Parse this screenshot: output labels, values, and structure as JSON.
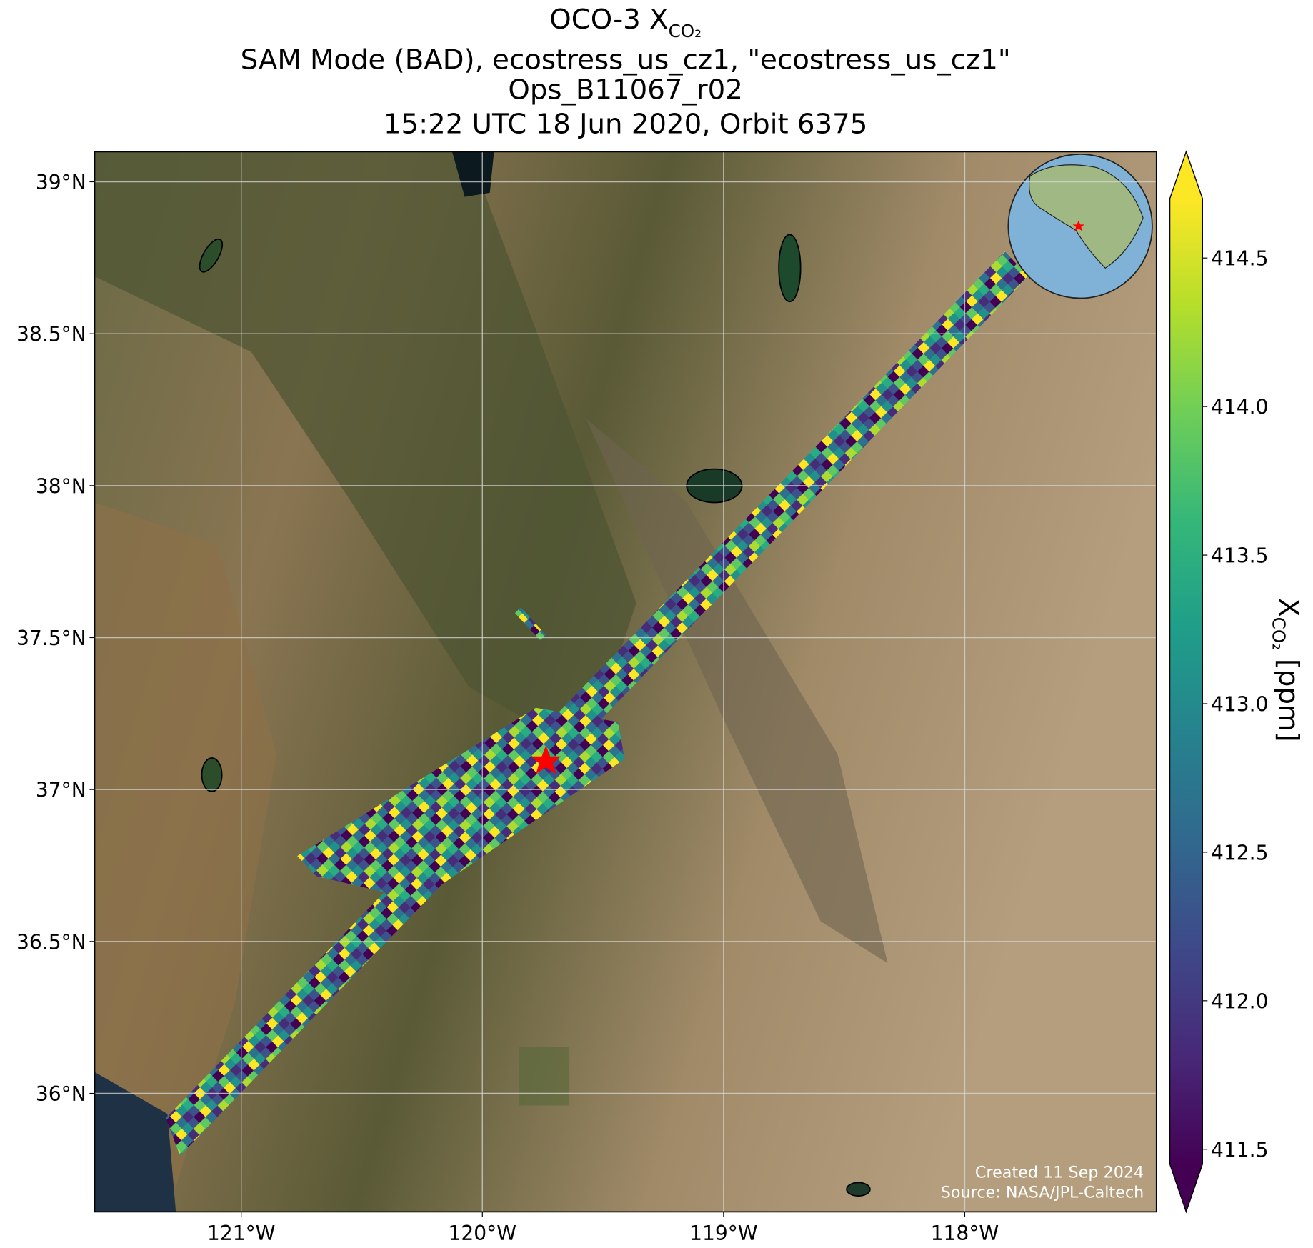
{
  "map": {
    "title": {
      "main": "OCO-3 X",
      "main_subscript": "CO₂",
      "lines": [
        "SAM Mode (BAD), ecostress_us_cz1, \"ecostress_us_cz1\"",
        "Ops_B11067_r02",
        "15:22 UTC 18 Jun 2020, Orbit 6375"
      ]
    },
    "xlim": [
      -121.608,
      -117.205
    ],
    "ylim": [
      35.61,
      39.099
    ],
    "xticks": [
      {
        "value": -121,
        "label": "121°W"
      },
      {
        "value": -120,
        "label": "120°W"
      },
      {
        "value": -119,
        "label": "119°W"
      },
      {
        "value": -118,
        "label": "118°W"
      }
    ],
    "yticks": [
      {
        "value": 36,
        "label": "36°N"
      },
      {
        "value": 36.5,
        "label": "36.5°N"
      },
      {
        "value": 37,
        "label": "37°N"
      },
      {
        "value": 37.5,
        "label": "37.5°N"
      },
      {
        "value": 38,
        "label": "38°N"
      },
      {
        "value": 38.5,
        "label": "38.5°N"
      },
      {
        "value": 39,
        "label": "39°N"
      }
    ],
    "grid": true,
    "colorbar": {
      "colormap": "viridis",
      "extend": "both",
      "lim": [
        411.45,
        414.7
      ],
      "ticks": [
        {
          "value": 411.5,
          "label": "411.5"
        },
        {
          "value": 412,
          "label": "412.0"
        },
        {
          "value": 412.5,
          "label": "412.5"
        },
        {
          "value": 413,
          "label": "413.0"
        },
        {
          "value": 413.5,
          "label": "413.5"
        },
        {
          "value": 414,
          "label": "414.0"
        },
        {
          "value": 414.5,
          "label": "414.5"
        }
      ],
      "label": {
        "base": "X",
        "subscript": "CO₂",
        "unit": "[ppm]"
      }
    },
    "annotations": [
      "Created 11 Sep 2024",
      "Source: NASA/JPL-Caltech"
    ]
  }
}
